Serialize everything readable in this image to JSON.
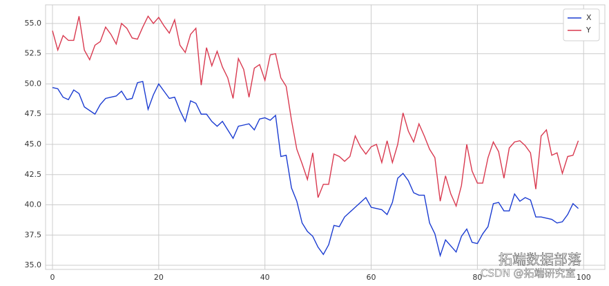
{
  "chart_data": {
    "type": "line",
    "x": [
      0,
      1,
      2,
      3,
      4,
      5,
      6,
      7,
      8,
      9,
      10,
      11,
      12,
      13,
      14,
      15,
      16,
      17,
      18,
      19,
      20,
      21,
      22,
      23,
      24,
      25,
      26,
      27,
      28,
      29,
      30,
      31,
      32,
      33,
      34,
      35,
      36,
      37,
      38,
      39,
      40,
      41,
      42,
      43,
      44,
      45,
      46,
      47,
      48,
      49,
      50,
      51,
      52,
      53,
      54,
      55,
      56,
      57,
      58,
      59,
      60,
      61,
      62,
      63,
      64,
      65,
      66,
      67,
      68,
      69,
      70,
      71,
      72,
      73,
      74,
      75,
      76,
      77,
      78,
      79,
      80,
      81,
      82,
      83,
      84,
      85,
      86,
      87,
      88,
      89,
      90,
      91,
      92,
      93,
      94,
      95,
      96,
      97,
      98,
      99
    ],
    "series": [
      {
        "name": "X",
        "color": "#1a3bd1",
        "values": [
          49.7,
          49.6,
          48.9,
          48.7,
          49.5,
          49.2,
          48.1,
          47.8,
          47.5,
          48.3,
          48.8,
          48.9,
          49.0,
          49.4,
          48.7,
          48.8,
          50.1,
          50.2,
          47.9,
          49.1,
          50.0,
          49.4,
          48.8,
          48.9,
          47.8,
          46.9,
          48.6,
          48.4,
          47.5,
          47.5,
          46.9,
          46.5,
          46.9,
          46.2,
          45.5,
          46.5,
          46.6,
          46.7,
          46.2,
          47.1,
          47.2,
          47.0,
          47.4,
          44.0,
          44.1,
          41.4,
          40.3,
          38.5,
          37.8,
          37.4,
          36.5,
          35.9,
          36.7,
          38.3,
          38.2,
          39.0,
          39.4,
          39.8,
          40.2,
          40.6,
          39.8,
          39.7,
          39.6,
          39.2,
          40.2,
          42.2,
          42.6,
          42.0,
          41.0,
          40.8,
          40.8,
          38.5,
          37.6,
          35.8,
          37.1,
          36.6,
          36.1,
          37.4,
          38.0,
          36.9,
          36.8,
          37.6,
          38.2,
          40.1,
          40.2,
          39.5,
          39.5,
          40.9,
          40.3,
          40.6,
          40.4,
          39.0,
          39.0,
          38.9,
          38.8,
          38.5,
          38.6,
          39.2,
          40.1,
          39.7
        ]
      },
      {
        "name": "Y",
        "color": "#d9394f",
        "values": [
          54.4,
          52.8,
          54.0,
          53.6,
          53.6,
          55.6,
          52.8,
          52.0,
          53.2,
          53.5,
          54.7,
          54.1,
          53.3,
          55.0,
          54.6,
          53.8,
          53.7,
          54.7,
          55.6,
          55.0,
          55.5,
          54.8,
          54.2,
          55.3,
          53.2,
          52.6,
          54.1,
          54.6,
          49.9,
          53.0,
          51.5,
          52.7,
          51.4,
          50.5,
          48.8,
          52.1,
          51.2,
          48.9,
          51.3,
          51.6,
          50.3,
          52.4,
          52.5,
          50.5,
          49.8,
          47.0,
          44.6,
          43.4,
          42.1,
          44.3,
          40.6,
          41.7,
          41.7,
          44.2,
          44.0,
          43.6,
          44.0,
          45.7,
          44.8,
          44.2,
          44.8,
          45.0,
          43.5,
          45.3,
          43.5,
          45.0,
          47.6,
          46.1,
          45.2,
          46.7,
          45.7,
          44.6,
          43.9,
          40.3,
          42.4,
          40.9,
          39.9,
          41.6,
          45.0,
          42.8,
          41.8,
          41.8,
          43.9,
          45.2,
          44.4,
          42.2,
          44.7,
          45.2,
          45.3,
          44.9,
          44.3,
          41.3,
          45.7,
          46.2,
          44.1,
          44.3,
          42.6,
          44.0,
          44.1,
          45.3
        ]
      }
    ],
    "xlim": [
      -1.3,
      104
    ],
    "ylim": [
      34.66,
      56.54
    ],
    "xticks": [
      0,
      20,
      40,
      60,
      80,
      100
    ],
    "yticks": [
      {
        "value": 35,
        "label": "35.0"
      },
      37.5,
      {
        "value": 40,
        "label": "40.0"
      },
      42.5,
      {
        "value": 45,
        "label": "45.0"
      },
      47.5,
      {
        "value": 50,
        "label": "50.0"
      },
      52.5,
      {
        "value": 55,
        "label": "55.0"
      }
    ],
    "grid": true,
    "legend": "upper right",
    "annotations": [
      "拓端数据部落",
      "CSDN @拓端研究室"
    ]
  }
}
